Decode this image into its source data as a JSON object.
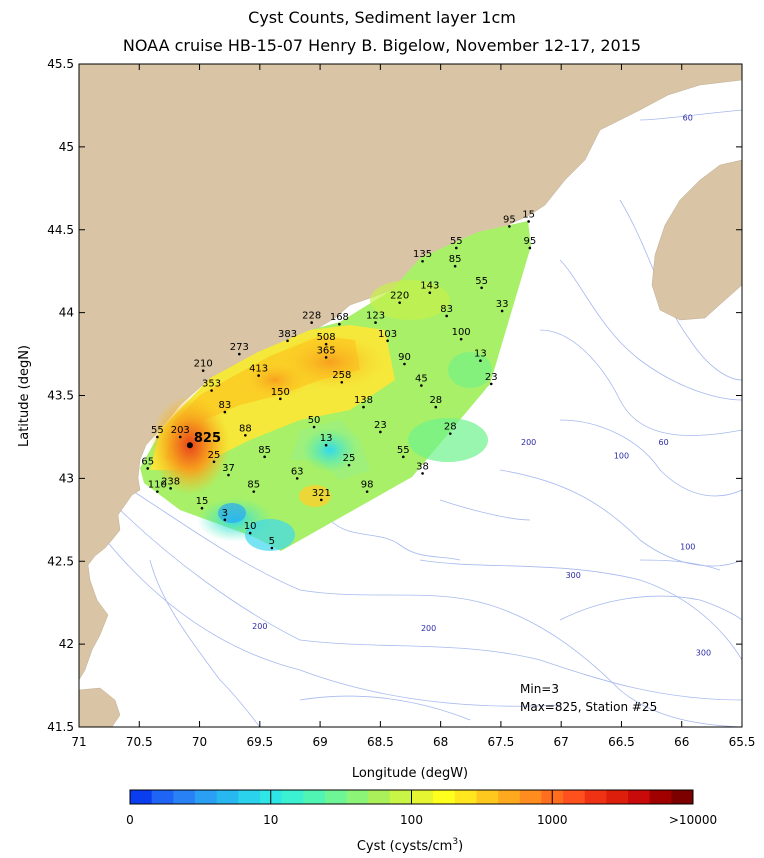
{
  "title": "Cyst Counts, Sediment layer 1cm",
  "subtitle": "NOAA cruise HB-15-07 Henry B. Bigelow, November 12-17, 2015",
  "colors": {
    "land": "#d9c5a5",
    "contour_line": "#9ab0ea",
    "frame": "#000000"
  },
  "chart_data": {
    "type": "map",
    "xlabel": "Longitude (degW)",
    "ylabel": "Latitude (degN)",
    "xlim": [
      71,
      65.5
    ],
    "ylim": [
      41.5,
      45.5
    ],
    "x_ticks": [
      "71",
      "70.5",
      "70",
      "69.5",
      "69",
      "68.5",
      "68",
      "67.5",
      "67",
      "66.5",
      "66",
      "65.5"
    ],
    "y_ticks": [
      "41.5",
      "42",
      "42.5",
      "43",
      "43.5",
      "44",
      "44.5",
      "45",
      "45.5"
    ],
    "stations": [
      {
        "lon": 67.27,
        "lat": 44.55,
        "value": "15"
      },
      {
        "lon": 67.43,
        "lat": 44.52,
        "value": "95"
      },
      {
        "lon": 67.26,
        "lat": 44.39,
        "value": "95"
      },
      {
        "lon": 67.87,
        "lat": 44.39,
        "value": "55"
      },
      {
        "lon": 67.88,
        "lat": 44.28,
        "value": "85"
      },
      {
        "lon": 68.15,
        "lat": 44.31,
        "value": "135"
      },
      {
        "lon": 67.66,
        "lat": 44.15,
        "value": "55"
      },
      {
        "lon": 68.09,
        "lat": 44.12,
        "value": "143"
      },
      {
        "lon": 68.34,
        "lat": 44.06,
        "value": "220"
      },
      {
        "lon": 67.49,
        "lat": 44.01,
        "value": "33"
      },
      {
        "lon": 67.95,
        "lat": 43.98,
        "value": "83"
      },
      {
        "lon": 68.54,
        "lat": 43.94,
        "value": "123"
      },
      {
        "lon": 68.84,
        "lat": 43.93,
        "value": "168"
      },
      {
        "lon": 69.07,
        "lat": 43.94,
        "value": "228"
      },
      {
        "lon": 68.44,
        "lat": 43.83,
        "value": "103"
      },
      {
        "lon": 67.83,
        "lat": 43.84,
        "value": "100"
      },
      {
        "lon": 69.27,
        "lat": 43.83,
        "value": "383"
      },
      {
        "lon": 68.95,
        "lat": 43.81,
        "value": "508"
      },
      {
        "lon": 69.67,
        "lat": 43.75,
        "value": "273"
      },
      {
        "lon": 68.95,
        "lat": 43.73,
        "value": "365"
      },
      {
        "lon": 68.3,
        "lat": 43.69,
        "value": "90"
      },
      {
        "lon": 67.67,
        "lat": 43.71,
        "value": "13"
      },
      {
        "lon": 69.97,
        "lat": 43.65,
        "value": "210"
      },
      {
        "lon": 69.51,
        "lat": 43.62,
        "value": "413"
      },
      {
        "lon": 68.82,
        "lat": 43.58,
        "value": "258"
      },
      {
        "lon": 68.16,
        "lat": 43.56,
        "value": "45"
      },
      {
        "lon": 67.58,
        "lat": 43.57,
        "value": "23"
      },
      {
        "lon": 69.9,
        "lat": 43.53,
        "value": "353"
      },
      {
        "lon": 69.33,
        "lat": 43.48,
        "value": "150"
      },
      {
        "lon": 68.64,
        "lat": 43.43,
        "value": "138"
      },
      {
        "lon": 68.04,
        "lat": 43.43,
        "value": "28"
      },
      {
        "lon": 69.79,
        "lat": 43.4,
        "value": "83"
      },
      {
        "lon": 69.05,
        "lat": 43.31,
        "value": "50"
      },
      {
        "lon": 68.5,
        "lat": 43.28,
        "value": "23"
      },
      {
        "lon": 67.92,
        "lat": 43.27,
        "value": "28"
      },
      {
        "lon": 70.35,
        "lat": 43.25,
        "value": "55"
      },
      {
        "lon": 70.16,
        "lat": 43.25,
        "value": "203"
      },
      {
        "lon": 69.62,
        "lat": 43.26,
        "value": "88"
      },
      {
        "lon": 70.08,
        "lat": 43.2,
        "value": "825"
      },
      {
        "lon": 68.95,
        "lat": 43.2,
        "value": "13"
      },
      {
        "lon": 69.46,
        "lat": 43.13,
        "value": "85"
      },
      {
        "lon": 68.31,
        "lat": 43.13,
        "value": "55"
      },
      {
        "lon": 69.88,
        "lat": 43.1,
        "value": "25"
      },
      {
        "lon": 68.76,
        "lat": 43.08,
        "value": "25"
      },
      {
        "lon": 70.43,
        "lat": 43.06,
        "value": "65"
      },
      {
        "lon": 69.76,
        "lat": 43.02,
        "value": "37"
      },
      {
        "lon": 69.19,
        "lat": 43.0,
        "value": "63"
      },
      {
        "lon": 68.15,
        "lat": 43.03,
        "value": "38"
      },
      {
        "lon": 70.24,
        "lat": 42.94,
        "value": "238"
      },
      {
        "lon": 69.55,
        "lat": 42.92,
        "value": "85"
      },
      {
        "lon": 68.61,
        "lat": 42.92,
        "value": "98"
      },
      {
        "lon": 70.35,
        "lat": 42.92,
        "value": "110"
      },
      {
        "lon": 68.99,
        "lat": 42.87,
        "value": "321"
      },
      {
        "lon": 69.98,
        "lat": 42.82,
        "value": "15"
      },
      {
        "lon": 69.79,
        "lat": 42.75,
        "value": "3"
      },
      {
        "lon": 69.58,
        "lat": 42.67,
        "value": "10"
      },
      {
        "lon": 69.4,
        "lat": 42.58,
        "value": "5"
      }
    ],
    "max_station": {
      "lon": 70.08,
      "lat": 43.2
    },
    "contour_labels": [
      {
        "text": "60",
        "lon": 65.95,
        "lat": 45.16
      },
      {
        "text": "200",
        "lon": 67.27,
        "lat": 43.2
      },
      {
        "text": "60",
        "lon": 66.15,
        "lat": 43.2
      },
      {
        "text": "100",
        "lon": 66.5,
        "lat": 43.12
      },
      {
        "text": "100",
        "lon": 65.95,
        "lat": 42.57
      },
      {
        "text": "300",
        "lon": 66.9,
        "lat": 42.4
      },
      {
        "text": "200",
        "lon": 69.5,
        "lat": 42.09
      },
      {
        "text": "200",
        "lon": 68.1,
        "lat": 42.08
      },
      {
        "text": "300",
        "lon": 65.82,
        "lat": 41.93
      }
    ],
    "annotations": [
      "Min=3",
      "Max=825, Station #25"
    ],
    "max_label": "825",
    "colorbar": {
      "label": "Cyst (cysts/cm",
      "label_sup": "3",
      "label_end": ")",
      "tick_labels": [
        "0",
        "10",
        "100",
        "1000",
        ">10000"
      ],
      "colors": [
        "#0a3cf0",
        "#1e64f5",
        "#2882f5",
        "#2aa0f5",
        "#28b8f0",
        "#2ad2eb",
        "#2ee6e6",
        "#3cf0d2",
        "#50f5b4",
        "#6ef596",
        "#8cf578",
        "#aaf05a",
        "#c8f546",
        "#e6f532",
        "#ffff1e",
        "#ffe61e",
        "#ffc81e",
        "#ffaa1e",
        "#ff8c1e",
        "#ff6e1e",
        "#ff501e",
        "#f03214",
        "#dc1e0a",
        "#c80a0a",
        "#a00000",
        "#7d0000"
      ]
    }
  }
}
